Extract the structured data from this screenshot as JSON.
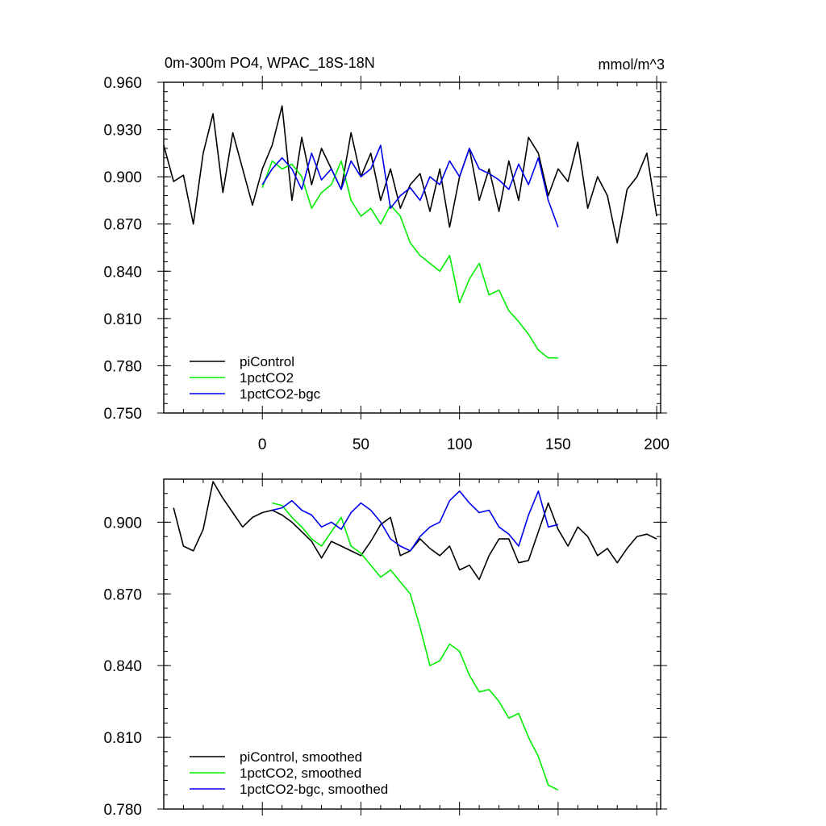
{
  "chart_data": [
    {
      "type": "line",
      "title": "0m-300m PO4, WPAC_18S-18N",
      "units": "mmol/m^3",
      "xlim": [
        -50,
        202
      ],
      "ylim": [
        0.75,
        0.96
      ],
      "xticks": [
        0,
        50,
        100,
        150,
        200
      ],
      "yticks": [
        0.75,
        0.78,
        0.81,
        0.84,
        0.87,
        0.9,
        0.93,
        0.96
      ],
      "ytick_labels": [
        "0.750",
        "0.780",
        "0.810",
        "0.840",
        "0.870",
        "0.900",
        "0.930",
        "0.960"
      ],
      "legend_position": "bottom-left",
      "series": [
        {
          "name": "piControl",
          "color": "#000000",
          "x": [
            -50,
            -45,
            -40,
            -35,
            -30,
            -25,
            -20,
            -15,
            -10,
            -5,
            0,
            5,
            10,
            15,
            20,
            25,
            30,
            35,
            40,
            45,
            50,
            55,
            60,
            65,
            70,
            75,
            80,
            85,
            90,
            95,
            100,
            105,
            110,
            115,
            120,
            125,
            130,
            135,
            140,
            145,
            150,
            155,
            160,
            165,
            170,
            175,
            180,
            185,
            190,
            195,
            200
          ],
          "values": [
            0.92,
            0.897,
            0.901,
            0.87,
            0.915,
            0.94,
            0.89,
            0.928,
            0.905,
            0.882,
            0.905,
            0.92,
            0.945,
            0.885,
            0.925,
            0.895,
            0.918,
            0.905,
            0.892,
            0.928,
            0.9,
            0.915,
            0.885,
            0.905,
            0.88,
            0.895,
            0.902,
            0.878,
            0.905,
            0.868,
            0.9,
            0.918,
            0.885,
            0.905,
            0.878,
            0.91,
            0.885,
            0.925,
            0.915,
            0.888,
            0.905,
            0.897,
            0.922,
            0.88,
            0.9,
            0.888,
            0.858,
            0.892,
            0.9,
            0.915,
            0.875
          ]
        },
        {
          "name": "1pctCO2",
          "color": "#00ee00",
          "x": [
            0,
            5,
            10,
            15,
            20,
            25,
            30,
            35,
            40,
            45,
            50,
            55,
            60,
            65,
            70,
            75,
            80,
            85,
            90,
            95,
            100,
            105,
            110,
            115,
            120,
            125,
            130,
            135,
            140,
            145,
            150
          ],
          "values": [
            0.893,
            0.91,
            0.905,
            0.908,
            0.9,
            0.88,
            0.89,
            0.895,
            0.91,
            0.885,
            0.875,
            0.88,
            0.87,
            0.882,
            0.875,
            0.858,
            0.85,
            0.845,
            0.84,
            0.85,
            0.82,
            0.835,
            0.845,
            0.825,
            0.828,
            0.815,
            0.808,
            0.8,
            0.79,
            0.785,
            0.785
          ]
        },
        {
          "name": "1pctCO2-bgc",
          "color": "#0000ee",
          "x": [
            0,
            5,
            10,
            15,
            20,
            25,
            30,
            35,
            40,
            45,
            50,
            55,
            60,
            65,
            70,
            75,
            80,
            85,
            90,
            95,
            100,
            105,
            110,
            115,
            120,
            125,
            130,
            135,
            140,
            145,
            150
          ],
          "values": [
            0.895,
            0.905,
            0.912,
            0.905,
            0.892,
            0.915,
            0.898,
            0.905,
            0.892,
            0.91,
            0.9,
            0.905,
            0.92,
            0.88,
            0.888,
            0.893,
            0.885,
            0.9,
            0.895,
            0.91,
            0.9,
            0.918,
            0.905,
            0.902,
            0.898,
            0.892,
            0.908,
            0.895,
            0.912,
            0.885,
            0.868
          ]
        }
      ]
    },
    {
      "type": "line",
      "title": "",
      "xlim": [
        -50,
        202
      ],
      "ylim": [
        0.78,
        0.918
      ],
      "xticks": [
        0,
        50,
        100,
        150,
        200
      ],
      "yticks": [
        0.78,
        0.81,
        0.84,
        0.87,
        0.9
      ],
      "ytick_labels": [
        "0.780",
        "0.810",
        "0.840",
        "0.870",
        "0.900"
      ],
      "legend_position": "bottom-left",
      "series": [
        {
          "name": "piControl, smoothed",
          "color": "#000000",
          "x": [
            -45,
            -40,
            -35,
            -30,
            -25,
            -20,
            -15,
            -10,
            -5,
            0,
            5,
            10,
            15,
            20,
            25,
            30,
            35,
            40,
            45,
            50,
            55,
            60,
            65,
            70,
            75,
            80,
            85,
            90,
            95,
            100,
            105,
            110,
            115,
            120,
            125,
            130,
            135,
            140,
            145,
            150,
            155,
            160,
            165,
            170,
            175,
            180,
            185,
            190,
            195,
            200
          ],
          "values": [
            0.906,
            0.89,
            0.888,
            0.897,
            0.917,
            0.91,
            0.904,
            0.898,
            0.902,
            0.904,
            0.905,
            0.903,
            0.9,
            0.896,
            0.892,
            0.885,
            0.892,
            0.89,
            0.888,
            0.886,
            0.892,
            0.899,
            0.902,
            0.886,
            0.888,
            0.893,
            0.889,
            0.886,
            0.89,
            0.88,
            0.882,
            0.876,
            0.886,
            0.893,
            0.893,
            0.883,
            0.884,
            0.896,
            0.908,
            0.897,
            0.89,
            0.898,
            0.894,
            0.886,
            0.889,
            0.883,
            0.889,
            0.894,
            0.895,
            0.893
          ]
        },
        {
          "name": "1pctCO2, smoothed",
          "color": "#00ee00",
          "x": [
            5,
            10,
            15,
            20,
            25,
            30,
            35,
            40,
            45,
            50,
            55,
            60,
            65,
            70,
            75,
            80,
            85,
            90,
            95,
            100,
            105,
            110,
            115,
            120,
            125,
            130,
            135,
            140,
            145,
            150
          ],
          "values": [
            0.908,
            0.907,
            0.902,
            0.898,
            0.893,
            0.89,
            0.896,
            0.902,
            0.89,
            0.887,
            0.882,
            0.877,
            0.88,
            0.875,
            0.87,
            0.856,
            0.84,
            0.842,
            0.849,
            0.846,
            0.836,
            0.829,
            0.83,
            0.825,
            0.818,
            0.82,
            0.81,
            0.802,
            0.79,
            0.788
          ]
        },
        {
          "name": "1pctCO2-bgc, smoothed",
          "color": "#0000ee",
          "x": [
            5,
            10,
            15,
            20,
            25,
            30,
            35,
            40,
            45,
            50,
            55,
            60,
            65,
            70,
            75,
            80,
            85,
            90,
            95,
            100,
            105,
            110,
            115,
            120,
            125,
            130,
            135,
            140,
            145,
            150
          ],
          "values": [
            0.905,
            0.906,
            0.909,
            0.905,
            0.903,
            0.898,
            0.9,
            0.897,
            0.904,
            0.908,
            0.905,
            0.9,
            0.893,
            0.89,
            0.888,
            0.894,
            0.898,
            0.9,
            0.909,
            0.913,
            0.908,
            0.904,
            0.905,
            0.898,
            0.895,
            0.89,
            0.903,
            0.913,
            0.898,
            0.899
          ]
        }
      ]
    }
  ]
}
